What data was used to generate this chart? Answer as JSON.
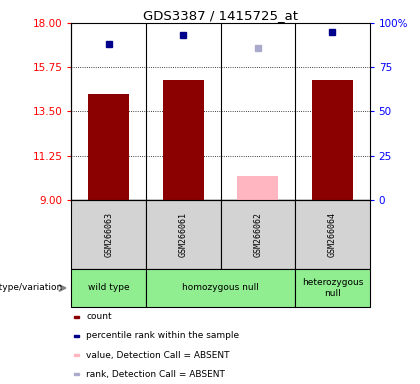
{
  "title": "GDS3387 / 1415725_at",
  "samples": [
    "GSM266063",
    "GSM266061",
    "GSM266062",
    "GSM266064"
  ],
  "bar_values": [
    14.4,
    15.1,
    null,
    15.1
  ],
  "bar_absent_values": [
    null,
    null,
    10.2,
    null
  ],
  "bar_color": "#8B0000",
  "bar_absent_color": "#FFB6C1",
  "rank_values": [
    88,
    93,
    null,
    95
  ],
  "rank_absent_values": [
    null,
    null,
    86,
    null
  ],
  "rank_color": "#00008B",
  "rank_absent_color": "#AAAACC",
  "ylim_left": [
    9,
    18
  ],
  "ylim_right": [
    0,
    100
  ],
  "yticks_left": [
    9,
    11.25,
    13.5,
    15.75,
    18
  ],
  "yticks_right": [
    0,
    25,
    50,
    75,
    100
  ],
  "ytick_labels_right": [
    "0",
    "25",
    "50",
    "75",
    "100%"
  ],
  "hlines": [
    11.25,
    13.5,
    15.75
  ],
  "bar_width": 0.55,
  "group_defs": [
    [
      0,
      0,
      "wild type",
      "#90EE90"
    ],
    [
      1,
      2,
      "homozygous null",
      "#90EE90"
    ],
    [
      3,
      3,
      "heterozygous\nnull",
      "#90EE90"
    ]
  ],
  "legend_items": [
    {
      "label": "count",
      "color": "#8B0000"
    },
    {
      "label": "percentile rank within the sample",
      "color": "#00008B"
    },
    {
      "label": "value, Detection Call = ABSENT",
      "color": "#FFB6C1"
    },
    {
      "label": "rank, Detection Call = ABSENT",
      "color": "#AAAACC"
    }
  ],
  "sample_box_color": "#D3D3D3",
  "figure_bg": "#FFFFFF"
}
